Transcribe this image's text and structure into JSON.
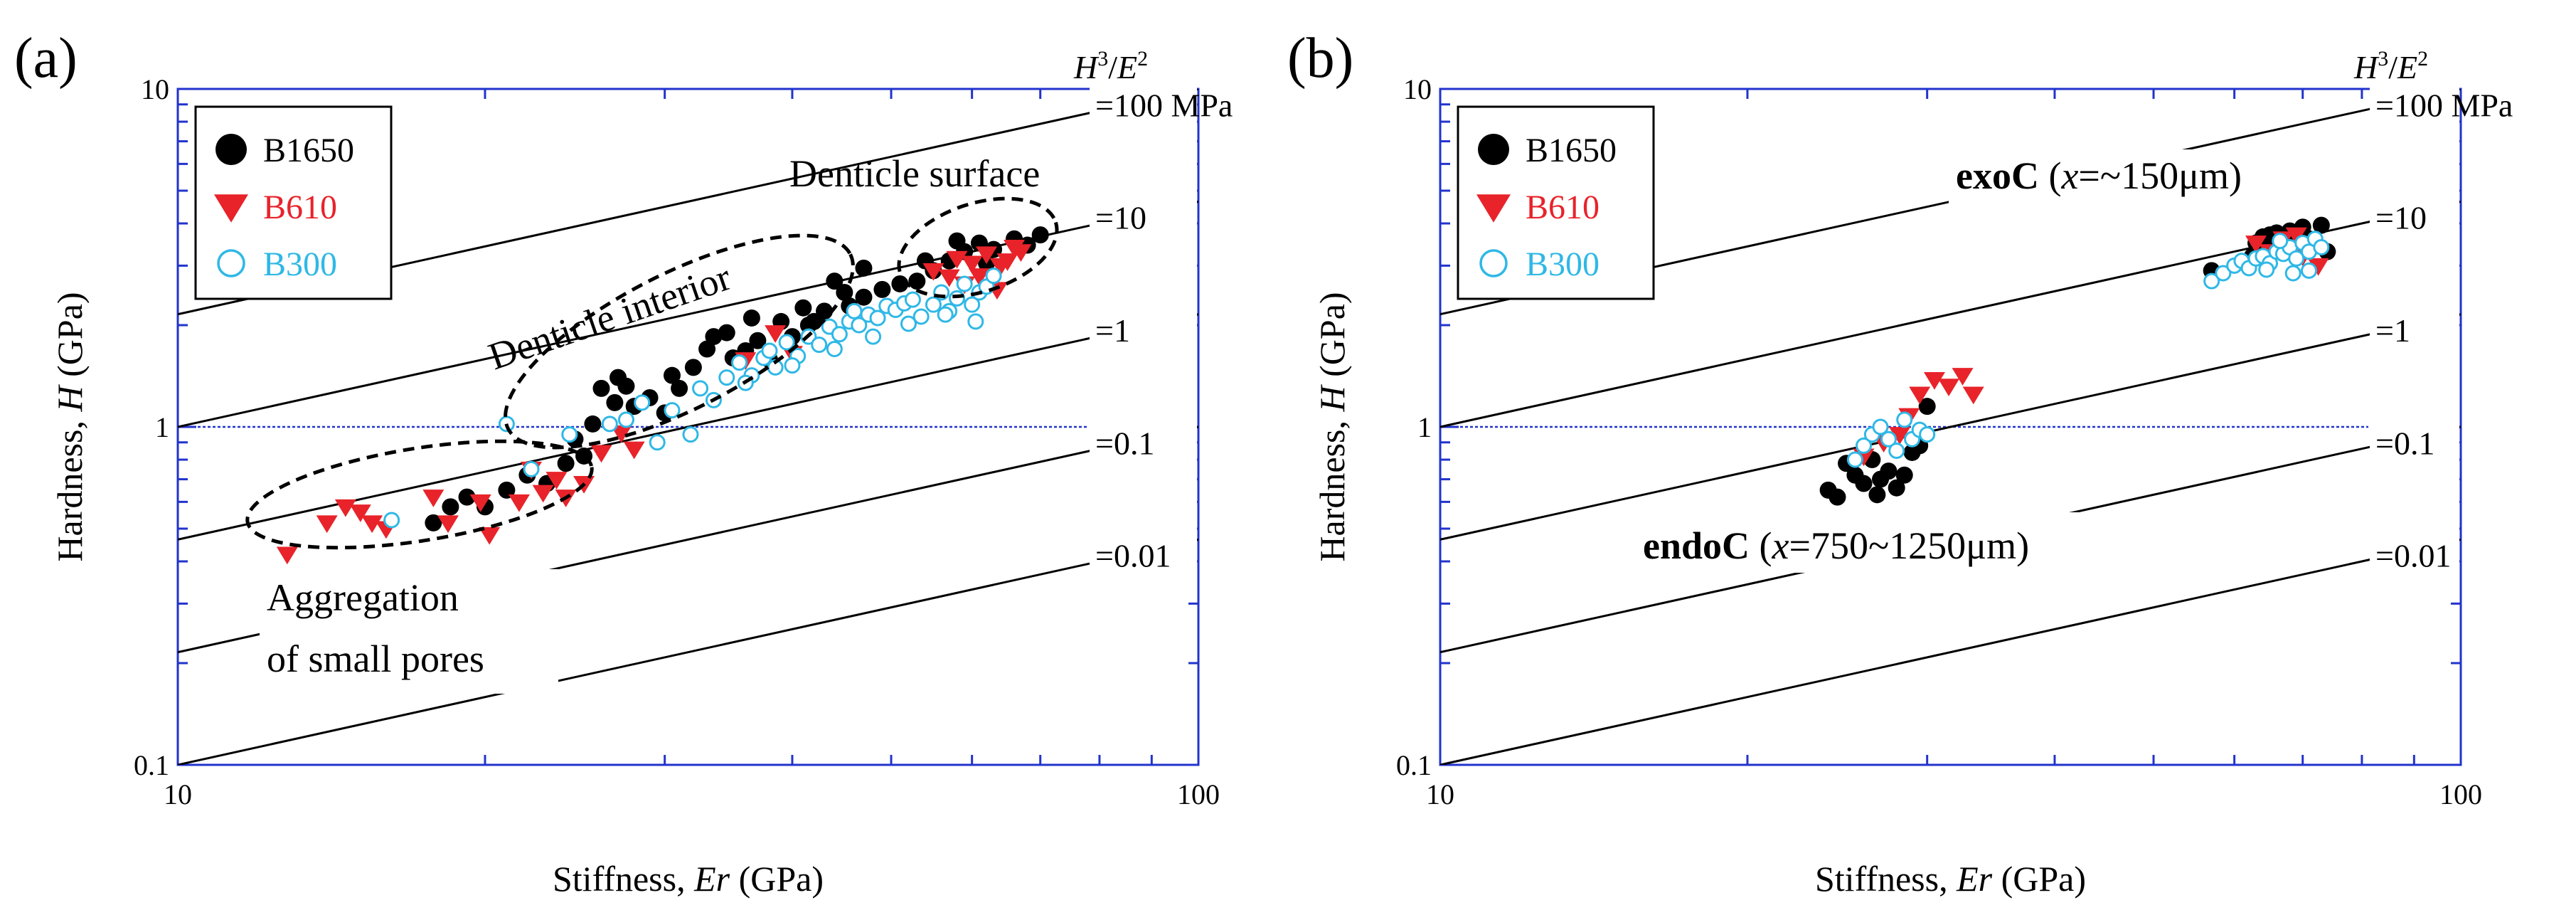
{
  "colors": {
    "B1650": "#000000",
    "B610": "#e8232a",
    "B300": "#2fb8e6",
    "frame": "#2233cc",
    "refline": "#2233cc",
    "isoline": "#000000"
  },
  "chart_data": [
    {
      "panel": "(a)",
      "type": "scatter",
      "xscale": "log",
      "yscale": "log",
      "xlim": [
        10,
        100
      ],
      "ylim": [
        0.1,
        10
      ],
      "xlabel": "Stiffness, Er (GPa)",
      "xlabel_parts": [
        "Stiffness, ",
        "Er",
        " (GPa)"
      ],
      "ylabel": "Hardness, H (GPa)",
      "ylabel_parts": [
        "Hardness, ",
        "H",
        " (GPa)"
      ],
      "xticks": [
        "10",
        "100"
      ],
      "yticks": [
        "0.1",
        "1",
        "10"
      ],
      "ratio_title_parts": [
        "H",
        "3",
        "/",
        "E",
        "2"
      ],
      "ratio_labels": [
        "=100 MPa",
        "=10",
        "=1",
        "=0.1",
        "=0.01"
      ],
      "ratio_values_MPa": [
        100,
        10,
        1,
        0.1,
        0.01
      ],
      "legend": [
        "B1650",
        "B610",
        "B300"
      ],
      "annotations": [
        "Denticle surface",
        "Denticle interior",
        "Aggregation",
        "of small pores"
      ],
      "series": [
        {
          "name": "B1650",
          "marker": "filled-circle",
          "points": [
            [
              17.8,
              0.52
            ],
            [
              18.5,
              0.58
            ],
            [
              19.2,
              0.62
            ],
            [
              20,
              0.58
            ],
            [
              21,
              0.65
            ],
            [
              22,
              0.72
            ],
            [
              23,
              0.68
            ],
            [
              24,
              0.78
            ],
            [
              25,
              0.82
            ],
            [
              24.5,
              0.92
            ],
            [
              25.5,
              1.02
            ],
            [
              26,
              1.3
            ],
            [
              27,
              1.4
            ],
            [
              27.5,
              1.32
            ],
            [
              28,
              1.15
            ],
            [
              29,
              1.22
            ],
            [
              30,
              1.1
            ],
            [
              31,
              1.3
            ],
            [
              32,
              1.5
            ],
            [
              33,
              1.7
            ],
            [
              33.5,
              1.85
            ],
            [
              34.5,
              1.9
            ],
            [
              35,
              1.6
            ],
            [
              36,
              1.68
            ],
            [
              37,
              1.8
            ],
            [
              38,
              1.58
            ],
            [
              40,
              1.85
            ],
            [
              41,
              2.25
            ],
            [
              42,
              2.05
            ],
            [
              43,
              2.2
            ],
            [
              44,
              2.7
            ],
            [
              45,
              2.5
            ],
            [
              47,
              2.42
            ],
            [
              49,
              2.55
            ],
            [
              51,
              2.65
            ],
            [
              53,
              2.7
            ],
            [
              55,
              2.9
            ],
            [
              57,
              3.1
            ],
            [
              59,
              3.3
            ],
            [
              61,
              3.5
            ],
            [
              63,
              3.35
            ],
            [
              66,
              3.6
            ],
            [
              68,
              3.45
            ],
            [
              70,
              3.7
            ],
            [
              54,
              3.1
            ],
            [
              58,
              3.55
            ],
            [
              62,
              3.05
            ],
            [
              47,
              2.95
            ],
            [
              39,
              2.05
            ],
            [
              30.5,
              1.42
            ],
            [
              45.5,
              2.28
            ],
            [
              26.8,
              1.18
            ],
            [
              36.5,
              2.1
            ],
            [
              41.5,
              2.0
            ]
          ]
        },
        {
          "name": "B610",
          "marker": "filled-triangle-down",
          "points": [
            [
              12.8,
              0.42
            ],
            [
              14,
              0.52
            ],
            [
              14.6,
              0.58
            ],
            [
              15.1,
              0.56
            ],
            [
              15.5,
              0.52
            ],
            [
              16,
              0.5
            ],
            [
              17.8,
              0.62
            ],
            [
              18.4,
              0.52
            ],
            [
              19.8,
              0.6
            ],
            [
              20.2,
              0.48
            ],
            [
              21.6,
              0.6
            ],
            [
              22.2,
              0.75
            ],
            [
              22.8,
              0.64
            ],
            [
              23.5,
              0.7
            ],
            [
              24,
              0.62
            ],
            [
              25,
              0.68
            ],
            [
              26,
              0.84
            ],
            [
              27.2,
              0.96
            ],
            [
              28,
              0.86
            ],
            [
              36,
              1.58
            ],
            [
              38.5,
              1.9
            ],
            [
              40,
              1.65
            ],
            [
              55,
              2.9
            ],
            [
              57,
              2.78
            ],
            [
              58,
              3.15
            ],
            [
              59,
              2.65
            ],
            [
              60,
              3.05
            ],
            [
              62,
              3.25
            ],
            [
              64,
              3.0
            ],
            [
              66,
              3.4
            ],
            [
              61,
              2.8
            ],
            [
              63.5,
              2.55
            ],
            [
              65,
              3.1
            ],
            [
              67,
              3.3
            ]
          ]
        },
        {
          "name": "B300",
          "marker": "open-circle",
          "points": [
            [
              16.2,
              0.53
            ],
            [
              21,
              1.02
            ],
            [
              22.2,
              0.75
            ],
            [
              24.2,
              0.95
            ],
            [
              26.5,
              1.02
            ],
            [
              27.5,
              1.05
            ],
            [
              28.5,
              1.18
            ],
            [
              29.5,
              0.9
            ],
            [
              30.5,
              1.12
            ],
            [
              31.8,
              0.95
            ],
            [
              32.5,
              1.3
            ],
            [
              33.5,
              1.2
            ],
            [
              34.5,
              1.4
            ],
            [
              35.5,
              1.55
            ],
            [
              36.5,
              1.42
            ],
            [
              37.5,
              1.6
            ],
            [
              38.5,
              1.5
            ],
            [
              39.5,
              1.78
            ],
            [
              40.5,
              1.62
            ],
            [
              41.5,
              1.85
            ],
            [
              42.5,
              1.75
            ],
            [
              43.5,
              1.98
            ],
            [
              44.5,
              1.88
            ],
            [
              45.5,
              2.05
            ],
            [
              46.5,
              2.0
            ],
            [
              47.5,
              2.15
            ],
            [
              48.5,
              2.1
            ],
            [
              49.5,
              2.28
            ],
            [
              50.5,
              2.22
            ],
            [
              51.5,
              2.32
            ],
            [
              52.5,
              2.38
            ],
            [
              53.5,
              2.12
            ],
            [
              55,
              2.3
            ],
            [
              56,
              2.5
            ],
            [
              57,
              2.2
            ],
            [
              58,
              2.4
            ],
            [
              59,
              2.65
            ],
            [
              60,
              2.3
            ],
            [
              61,
              2.5
            ],
            [
              62,
              2.6
            ],
            [
              63,
              2.8
            ],
            [
              48,
              1.85
            ],
            [
              44,
              1.7
            ],
            [
              40,
              1.52
            ],
            [
              36,
              1.35
            ],
            [
              52,
              2.02
            ],
            [
              56.5,
              2.15
            ],
            [
              60.5,
              2.05
            ],
            [
              38,
              1.68
            ],
            [
              46,
              2.2
            ]
          ]
        }
      ]
    },
    {
      "panel": "(b)",
      "type": "scatter",
      "xscale": "log",
      "yscale": "log",
      "xlim": [
        10,
        100
      ],
      "ylim": [
        0.1,
        10
      ],
      "xlabel": "Stiffness, Er (GPa)",
      "xlabel_parts": [
        "Stiffness, ",
        "Er",
        " (GPa)"
      ],
      "ylabel": "Hardness, H (GPa)",
      "ylabel_parts": [
        "Hardness, ",
        "H",
        " (GPa)"
      ],
      "xticks": [
        "10",
        "100"
      ],
      "yticks": [
        "0.1",
        "1",
        "10"
      ],
      "ratio_title_parts": [
        "H",
        "3",
        "/",
        "E",
        "2"
      ],
      "ratio_labels": [
        "=100 MPa",
        "=10",
        "=1",
        "=0.1",
        "=0.01"
      ],
      "ratio_values_MPa": [
        100,
        10,
        1,
        0.1,
        0.01
      ],
      "legend": [
        "B1650",
        "B610",
        "B300"
      ],
      "annotations": [
        "exoC (x=~150μm)",
        "endoC (x=750~1250μm)"
      ],
      "annotation_parts": [
        [
          "exoC",
          " (",
          "x",
          "=~150μm)"
        ],
        [
          "endoC",
          " (",
          "x",
          "=750~1250μm)"
        ]
      ],
      "series": [
        {
          "name": "B1650",
          "marker": "filled-circle",
          "points": [
            [
              24,
              0.65
            ],
            [
              24.5,
              0.62
            ],
            [
              25,
              0.78
            ],
            [
              25.5,
              0.72
            ],
            [
              26,
              0.68
            ],
            [
              26.5,
              0.8
            ],
            [
              27,
              0.7
            ],
            [
              27.5,
              0.74
            ],
            [
              28,
              0.66
            ],
            [
              28.5,
              0.72
            ],
            [
              29,
              0.84
            ],
            [
              29.5,
              0.88
            ],
            [
              30,
              1.15
            ],
            [
              26.8,
              0.63
            ],
            [
              57,
              2.9
            ],
            [
              63,
              3.5
            ],
            [
              64,
              3.65
            ],
            [
              65,
              3.7
            ],
            [
              66,
              3.75
            ],
            [
              67,
              3.55
            ],
            [
              68,
              3.8
            ],
            [
              69,
              3.4
            ],
            [
              70,
              3.9
            ],
            [
              71,
              3.6
            ],
            [
              72,
              3.5
            ],
            [
              73,
              3.95
            ],
            [
              74,
              3.3
            ],
            [
              62.5,
              3.2
            ]
          ]
        },
        {
          "name": "B610",
          "marker": "filled-triangle-down",
          "points": [
            [
              26,
              0.82
            ],
            [
              27.2,
              0.9
            ],
            [
              28.2,
              0.95
            ],
            [
              28.8,
              1.08
            ],
            [
              29.5,
              1.25
            ],
            [
              30.5,
              1.38
            ],
            [
              31.5,
              1.32
            ],
            [
              32.5,
              1.42
            ],
            [
              33.3,
              1.25
            ],
            [
              63,
              3.5
            ],
            [
              65,
              3.3
            ],
            [
              67,
              3.6
            ],
            [
              69,
              3.7
            ],
            [
              70,
              3.2
            ],
            [
              71.5,
              3.45
            ],
            [
              72.5,
              3.0
            ]
          ]
        },
        {
          "name": "B300",
          "marker": "open-circle",
          "points": [
            [
              25.5,
              0.8
            ],
            [
              26,
              0.88
            ],
            [
              26.5,
              0.95
            ],
            [
              27,
              1.0
            ],
            [
              27.5,
              0.92
            ],
            [
              28,
              0.85
            ],
            [
              28.5,
              1.05
            ],
            [
              29,
              0.92
            ],
            [
              29.5,
              0.98
            ],
            [
              30,
              0.95
            ],
            [
              57,
              2.7
            ],
            [
              58.5,
              2.85
            ],
            [
              60,
              3.0
            ],
            [
              61,
              3.1
            ],
            [
              62,
              2.95
            ],
            [
              63,
              3.15
            ],
            [
              64,
              3.2
            ],
            [
              65,
              3.05
            ],
            [
              66,
              3.3
            ],
            [
              67,
              3.25
            ],
            [
              68,
              3.4
            ],
            [
              69,
              3.15
            ],
            [
              70,
              3.5
            ],
            [
              71,
              3.3
            ],
            [
              72,
              3.6
            ],
            [
              73,
              3.4
            ],
            [
              68.5,
              2.85
            ],
            [
              71,
              2.9
            ],
            [
              66.5,
              3.55
            ],
            [
              64.5,
              2.92
            ]
          ]
        }
      ]
    }
  ]
}
